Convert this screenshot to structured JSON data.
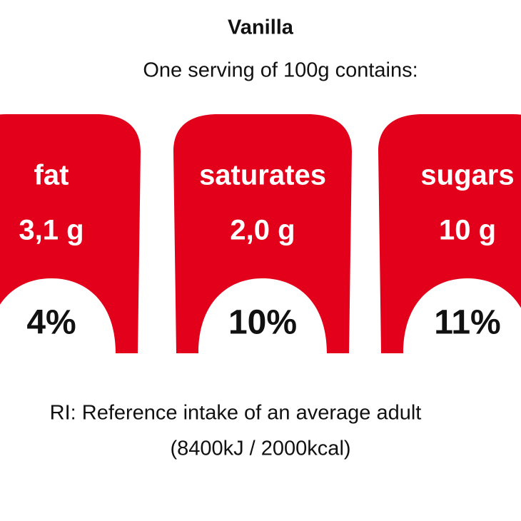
{
  "title": "Vanilla",
  "subtitle": "One serving of 100g contains:",
  "items": [
    {
      "name": "fat",
      "amount": "3,1 g",
      "percent": "4%"
    },
    {
      "name": "saturates",
      "amount": "2,0 g",
      "percent": "10%"
    },
    {
      "name": "sugars",
      "amount": "10 g",
      "percent": "11%"
    }
  ],
  "footnote": [
    "RI: Reference intake of an average adult",
    "(8400kJ / 2000kcal)"
  ]
}
